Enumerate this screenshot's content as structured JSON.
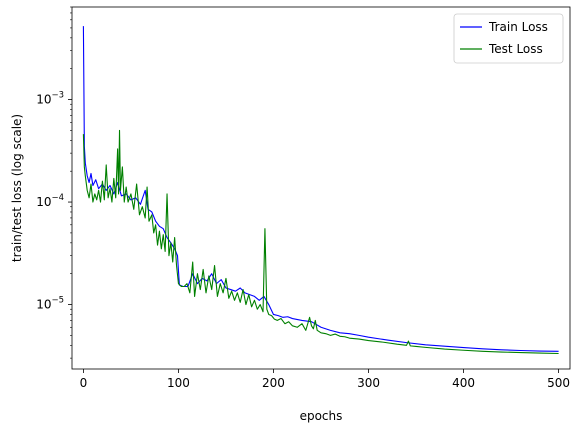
{
  "chart_data": {
    "type": "line",
    "title": "",
    "xlabel": "epochs",
    "ylabel": "train/test loss (log scale)",
    "yscale": "log",
    "xlim": [
      -12,
      512
    ],
    "ylim": [
      2.35e-06,
      0.008
    ],
    "grid": false,
    "legend_position": "top-right",
    "x_ticks": [
      {
        "value": 0,
        "label": "0"
      },
      {
        "value": 100,
        "label": "100"
      },
      {
        "value": 200,
        "label": "200"
      },
      {
        "value": 300,
        "label": "300"
      },
      {
        "value": 400,
        "label": "400"
      },
      {
        "value": 500,
        "label": "500"
      }
    ],
    "y_ticks": [
      {
        "value": 1e-05,
        "base": "10",
        "exp": "−5"
      },
      {
        "value": 0.0001,
        "base": "10",
        "exp": "−4"
      },
      {
        "value": 0.001,
        "base": "10",
        "exp": "−3"
      }
    ],
    "series": [
      {
        "name": "Train Loss",
        "color": "#0000ff",
        "points": [
          [
            0,
            0.0052
          ],
          [
            1,
            0.00035
          ],
          [
            2,
            0.00024
          ],
          [
            4,
            0.00018
          ],
          [
            6,
            0.000155
          ],
          [
            8,
            0.00019
          ],
          [
            10,
            0.000145
          ],
          [
            13,
            0.000165
          ],
          [
            16,
            0.000135
          ],
          [
            20,
            0.00015
          ],
          [
            24,
            0.00013
          ],
          [
            28,
            0.000145
          ],
          [
            32,
            0.00012
          ],
          [
            36,
            0.000155
          ],
          [
            40,
            0.000115
          ],
          [
            45,
            0.00012
          ],
          [
            50,
            0.000105
          ],
          [
            55,
            0.00011
          ],
          [
            60,
            9.5e-05
          ],
          [
            65,
            0.00013
          ],
          [
            68,
            8.5e-05
          ],
          [
            72,
            8e-05
          ],
          [
            76,
            6.5e-05
          ],
          [
            80,
            5.8e-05
          ],
          [
            84,
            5.5e-05
          ],
          [
            88,
            4.5e-05
          ],
          [
            92,
            4e-05
          ],
          [
            96,
            3.5e-05
          ],
          [
            99,
            3e-05
          ],
          [
            101,
            1.55e-05
          ],
          [
            105,
            1.5e-05
          ],
          [
            110,
            1.5e-05
          ],
          [
            115,
            2e-05
          ],
          [
            120,
            1.6e-05
          ],
          [
            125,
            1.8e-05
          ],
          [
            130,
            1.7e-05
          ],
          [
            135,
            2e-05
          ],
          [
            140,
            1.6e-05
          ],
          [
            145,
            1.75e-05
          ],
          [
            150,
            1.45e-05
          ],
          [
            155,
            1.4e-05
          ],
          [
            160,
            1.35e-05
          ],
          [
            165,
            1.45e-05
          ],
          [
            170,
            1.3e-05
          ],
          [
            175,
            1.25e-05
          ],
          [
            180,
            1.2e-05
          ],
          [
            185,
            1.1e-05
          ],
          [
            190,
            1.2e-05
          ],
          [
            195,
            1e-05
          ],
          [
            200,
            8e-06
          ],
          [
            205,
            7.8e-06
          ],
          [
            210,
            7.5e-06
          ],
          [
            215,
            7.6e-06
          ],
          [
            220,
            7.3e-06
          ],
          [
            230,
            7e-06
          ],
          [
            240,
            6.8e-06
          ],
          [
            250,
            6e-06
          ],
          [
            260,
            5.6e-06
          ],
          [
            270,
            5.3e-06
          ],
          [
            280,
            5.2e-06
          ],
          [
            290,
            5e-06
          ],
          [
            300,
            4.8e-06
          ],
          [
            320,
            4.5e-06
          ],
          [
            340,
            4.25e-06
          ],
          [
            360,
            4.05e-06
          ],
          [
            380,
            3.92e-06
          ],
          [
            400,
            3.8e-06
          ],
          [
            420,
            3.7e-06
          ],
          [
            440,
            3.62e-06
          ],
          [
            460,
            3.56e-06
          ],
          [
            480,
            3.52e-06
          ],
          [
            500,
            3.5e-06
          ]
        ]
      },
      {
        "name": "Test Loss",
        "color": "#008000",
        "points": [
          [
            0,
            0.00046
          ],
          [
            1,
            0.00022
          ],
          [
            2,
            0.00018
          ],
          [
            4,
            0.00013
          ],
          [
            6,
            0.00011
          ],
          [
            8,
            0.00015
          ],
          [
            10,
            0.0001
          ],
          [
            12,
            0.00012
          ],
          [
            14,
            0.000105
          ],
          [
            16,
            0.00013
          ],
          [
            18,
            0.0001
          ],
          [
            20,
            0.00016
          ],
          [
            22,
            0.000105
          ],
          [
            24,
            0.00023
          ],
          [
            26,
            0.00011
          ],
          [
            28,
            0.000135
          ],
          [
            30,
            0.0001
          ],
          [
            32,
            0.00017
          ],
          [
            34,
            0.00011
          ],
          [
            36,
            0.00033
          ],
          [
            37,
            0.00012
          ],
          [
            38,
            0.0005
          ],
          [
            39,
            0.00013
          ],
          [
            41,
            0.00022
          ],
          [
            43,
            0.0001
          ],
          [
            45,
            0.00014
          ],
          [
            47,
            0.0001
          ],
          [
            50,
            0.00012
          ],
          [
            53,
            8.5e-05
          ],
          [
            56,
            0.00015
          ],
          [
            59,
            7.5e-05
          ],
          [
            62,
            9e-05
          ],
          [
            65,
            7e-05
          ],
          [
            67,
            0.00014
          ],
          [
            69,
            6.5e-05
          ],
          [
            72,
            7.5e-05
          ],
          [
            74,
            5e-05
          ],
          [
            76,
            6e-05
          ],
          [
            78,
            3.8e-05
          ],
          [
            80,
            5.2e-05
          ],
          [
            82,
            3.5e-05
          ],
          [
            84,
            4.8e-05
          ],
          [
            86,
            3.3e-05
          ],
          [
            88,
            0.00012
          ],
          [
            90,
            3e-05
          ],
          [
            92,
            4e-05
          ],
          [
            94,
            2.6e-05
          ],
          [
            96,
            4.5e-05
          ],
          [
            98,
            2.4e-05
          ],
          [
            100,
            1.6e-05
          ],
          [
            103,
            1.5e-05
          ],
          [
            106,
            1.5e-05
          ],
          [
            109,
            1.6e-05
          ],
          [
            112,
            1.3e-05
          ],
          [
            115,
            2.6e-05
          ],
          [
            117,
            1.2e-05
          ],
          [
            120,
            2e-05
          ],
          [
            123,
            1.4e-05
          ],
          [
            126,
            2.2e-05
          ],
          [
            129,
            1.3e-05
          ],
          [
            132,
            1.9e-05
          ],
          [
            135,
            1.4e-05
          ],
          [
            138,
            2.4e-05
          ],
          [
            141,
            1.2e-05
          ],
          [
            144,
            1.6e-05
          ],
          [
            147,
            1.3e-05
          ],
          [
            150,
            1.8e-05
          ],
          [
            153,
            1.15e-05
          ],
          [
            156,
            1.35e-05
          ],
          [
            159,
            1.1e-05
          ],
          [
            162,
            1.3e-05
          ],
          [
            165,
            1.05e-05
          ],
          [
            168,
            1.4e-05
          ],
          [
            171,
            1e-05
          ],
          [
            174,
            1.25e-05
          ],
          [
            177,
            9.5e-06
          ],
          [
            180,
            1.1e-05
          ],
          [
            183,
            9e-06
          ],
          [
            186,
            1e-05
          ],
          [
            189,
            8.5e-06
          ],
          [
            191,
            5.5e-05
          ],
          [
            193,
            9e-06
          ],
          [
            195,
            8e-06
          ],
          [
            198,
            7.8e-06
          ],
          [
            201,
            7.2e-06
          ],
          [
            204,
            7e-06
          ],
          [
            208,
            7.3e-06
          ],
          [
            212,
            6.5e-06
          ],
          [
            216,
            6.8e-06
          ],
          [
            220,
            6.2e-06
          ],
          [
            225,
            6e-06
          ],
          [
            230,
            6.5e-06
          ],
          [
            234,
            5.6e-06
          ],
          [
            238,
            7.5e-06
          ],
          [
            240,
            6.2e-06
          ],
          [
            242,
            5.8e-06
          ],
          [
            244,
            7e-06
          ],
          [
            246,
            5.6e-06
          ],
          [
            250,
            5.3e-06
          ],
          [
            255,
            5.2e-06
          ],
          [
            260,
            5e-06
          ],
          [
            265,
            5.15e-06
          ],
          [
            270,
            4.9e-06
          ],
          [
            275,
            4.85e-06
          ],
          [
            280,
            4.7e-06
          ],
          [
            290,
            4.6e-06
          ],
          [
            300,
            4.45e-06
          ],
          [
            315,
            4.3e-06
          ],
          [
            330,
            4.1e-06
          ],
          [
            340,
            4e-06
          ],
          [
            342,
            4.4e-06
          ],
          [
            344,
            3.95e-06
          ],
          [
            350,
            3.9e-06
          ],
          [
            360,
            3.82e-06
          ],
          [
            380,
            3.68e-06
          ],
          [
            400,
            3.58e-06
          ],
          [
            420,
            3.5e-06
          ],
          [
            440,
            3.44e-06
          ],
          [
            460,
            3.4e-06
          ],
          [
            480,
            3.36e-06
          ],
          [
            500,
            3.33e-06
          ]
        ]
      }
    ]
  }
}
